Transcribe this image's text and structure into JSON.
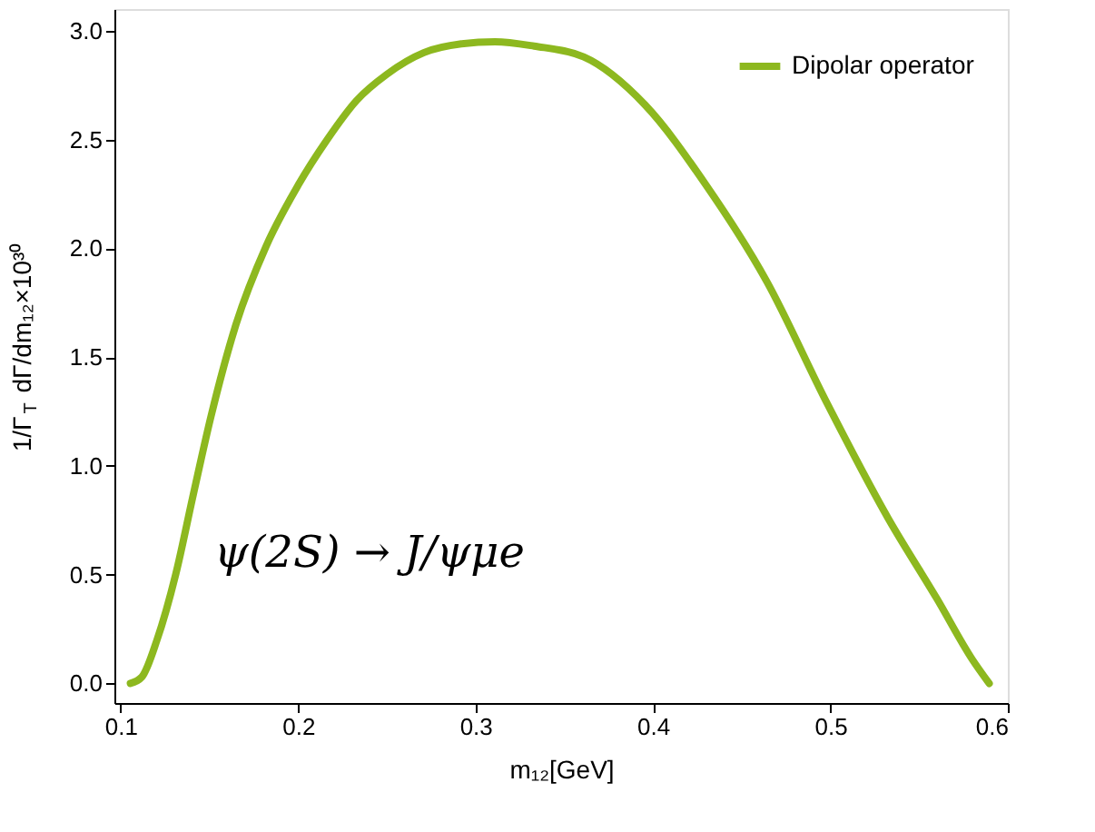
{
  "chart_data": {
    "type": "line",
    "xlabel": "m₁₂[GeV]",
    "ylabel": "1/Γ$_{T}$ dΓ/dm₁₂×10³⁰",
    "annotations": [
      "ψ(2S) → J/ψμe"
    ],
    "xlim": [
      0.0965,
      0.6
    ],
    "ylim": [
      -0.09,
      3.1
    ],
    "xticks": [
      0.1,
      0.2,
      0.3,
      0.4,
      0.5,
      0.6
    ],
    "yticks": [
      {
        "value": 0,
        "label": "0.0"
      },
      {
        "value": 0.5,
        "label": "0.5"
      },
      {
        "value": 1,
        "label": "1.0"
      },
      {
        "value": 1.5,
        "label": "1.5"
      },
      {
        "value": 2,
        "label": "2.0"
      },
      {
        "value": 2.5,
        "label": "2.5"
      },
      {
        "value": 3,
        "label": "3.0"
      }
    ],
    "grid": false,
    "legend": "top right",
    "marker": "none",
    "line_style": "solid",
    "series": [
      {
        "name": "Dipolar operator",
        "color": "#8db81f",
        "x": [
          0.1055,
          0.112,
          0.1205,
          0.131,
          0.141,
          0.151,
          0.165,
          0.182,
          0.2,
          0.2164,
          0.233,
          0.25,
          0.271,
          0.292,
          0.311,
          0.333,
          0.361,
          0.3955,
          0.43,
          0.464,
          0.498,
          0.5325,
          0.56,
          0.58,
          0.5895
        ],
        "values": [
          0,
          0.03,
          0.2,
          0.5,
          0.87,
          1.23,
          1.65,
          2.01,
          2.29,
          2.5,
          2.68,
          2.8,
          2.9,
          2.94,
          2.95,
          2.93,
          2.88,
          2.66,
          2.29,
          1.85,
          1.29,
          0.76,
          0.39,
          0.11,
          0
        ]
      }
    ]
  }
}
